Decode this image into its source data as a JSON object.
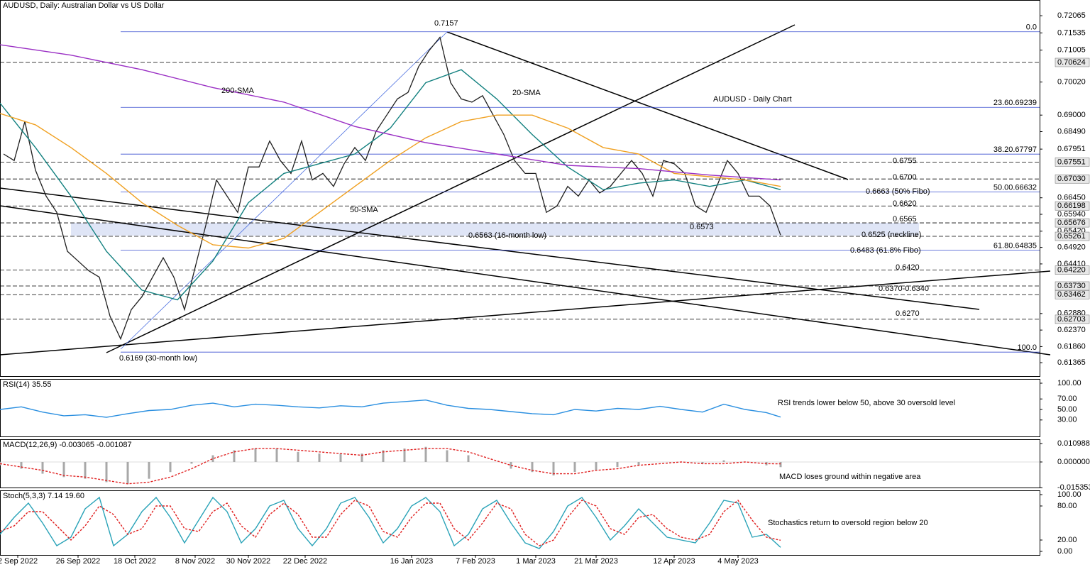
{
  "chart_data": [
    {
      "type": "line",
      "title": "AUDUSD, Daily:  Australian Dollar vs US Dollar",
      "xlim": [
        0,
        293
      ],
      "xticks": [
        {
          "value": 5,
          "label": "2 Sep 2022"
        },
        {
          "value": 22,
          "label": "26 Sep 2022"
        },
        {
          "value": 38,
          "label": "18 Oct 2022"
        },
        {
          "value": 55,
          "label": "8 Nov 2022"
        },
        {
          "value": 70,
          "label": "30 Nov 2022"
        },
        {
          "value": 86,
          "label": "22 Dec 2022"
        },
        {
          "value": 116,
          "label": "16 Jan 2023"
        },
        {
          "value": 134,
          "label": "7 Feb 2023"
        },
        {
          "value": 151,
          "label": "1 Mar 2023"
        },
        {
          "value": 168,
          "label": "21 Mar 2023"
        },
        {
          "value": 190,
          "label": "12 Apr 2023"
        },
        {
          "value": 208,
          "label": "4 May 2023"
        }
      ],
      "ylim": [
        0.6095,
        0.7255
      ],
      "yticks": [
        0.72065,
        0.71535,
        0.71005,
        {
          "value": 0.7002,
          "label": "0.70020"
        },
        {
          "value": 0.69,
          "label": "0.69000"
        },
        {
          "value": 0.6849,
          "label": "0.68490"
        },
        0.67951,
        {
          "value": 0.6645,
          "label": "0.66450"
        },
        {
          "value": 0.6594,
          "label": "0.65940"
        },
        {
          "value": 0.6542,
          "label": "0.65420"
        },
        {
          "value": 0.6492,
          "label": "0.64920"
        },
        {
          "value": 0.6441,
          "label": "0.64410"
        },
        {
          "value": 0.6288,
          "label": "0.62880"
        },
        {
          "value": 0.6237,
          "label": "0.62370"
        },
        {
          "value": 0.6186,
          "label": "0.61860"
        },
        0.61365
      ],
      "levels": [
        0.70624,
        0.67551,
        {
          "value": 0.6703,
          "label": "0.67030"
        },
        0.66198,
        0.65676,
        0.65261,
        {
          "value": 0.6422,
          "label": "0.64220"
        },
        {
          "value": 0.6373,
          "label": "0.63730"
        },
        0.63462,
        0.62703
      ],
      "fib_levels": [
        {
          "value": 0.7157,
          "label": "0.0"
        },
        {
          "value": 0.69239,
          "label": "23.60.69239"
        },
        {
          "value": 0.67797,
          "label": "38.20.67797"
        },
        {
          "value": 0.66632,
          "label": "50.00.66632"
        },
        {
          "value": 0.64835,
          "label": "61.80.64835"
        },
        {
          "value": 0.6169,
          "label": "100.0"
        }
      ],
      "series": [
        {
          "color": "#1f1f1f",
          "style": "line",
          "x": [
            1,
            4,
            7,
            10,
            13,
            16,
            19,
            22,
            25,
            28,
            31,
            34,
            37,
            40,
            43,
            46,
            49,
            52,
            55,
            58,
            61,
            64,
            67,
            70,
            73,
            76,
            79,
            82,
            85,
            88,
            91,
            94,
            97,
            100,
            103,
            106,
            109,
            112,
            115,
            118,
            121,
            124,
            127,
            130,
            133,
            136,
            139,
            142,
            145,
            148,
            151,
            154,
            157,
            160,
            163,
            166,
            169,
            172,
            175,
            178,
            181,
            184,
            187,
            190,
            193,
            196,
            199,
            202,
            205,
            208,
            211,
            214,
            217,
            220
          ],
          "values": [
            0.678,
            0.676,
            0.688,
            0.673,
            0.665,
            0.66,
            0.648,
            0.645,
            0.642,
            0.64,
            0.628,
            0.621,
            0.63,
            0.634,
            0.64,
            0.646,
            0.64,
            0.63,
            0.643,
            0.656,
            0.67,
            0.665,
            0.66,
            0.674,
            0.674,
            0.682,
            0.676,
            0.672,
            0.682,
            0.67,
            0.672,
            0.668,
            0.675,
            0.68,
            0.676,
            0.685,
            0.69,
            0.695,
            0.697,
            0.705,
            0.71,
            0.714,
            0.7,
            0.695,
            0.694,
            0.696,
            0.69,
            0.684,
            0.676,
            0.672,
            0.672,
            0.66,
            0.662,
            0.668,
            0.665,
            0.67,
            0.666,
            0.668,
            0.672,
            0.676,
            0.672,
            0.665,
            0.676,
            0.675,
            0.672,
            0.662,
            0.66,
            0.668,
            0.676,
            0.672,
            0.665,
            0.665,
            0.662,
            0.653
          ]
        },
        {
          "name": "20-SMA",
          "color": "#12807f",
          "style": "line",
          "x": [
            0,
            10,
            20,
            30,
            40,
            50,
            60,
            70,
            80,
            90,
            100,
            110,
            120,
            130,
            140,
            150,
            160,
            170,
            180,
            190,
            200,
            210,
            220
          ],
          "values": [
            0.6937,
            0.68,
            0.665,
            0.648,
            0.636,
            0.633,
            0.645,
            0.663,
            0.672,
            0.675,
            0.678,
            0.686,
            0.7,
            0.704,
            0.695,
            0.684,
            0.674,
            0.667,
            0.669,
            0.67,
            0.668,
            0.67,
            0.667
          ]
        },
        {
          "name": "50-SMA",
          "color": "#f0a020",
          "style": "line",
          "x": [
            0,
            10,
            20,
            30,
            40,
            50,
            60,
            70,
            80,
            90,
            100,
            110,
            120,
            130,
            140,
            150,
            160,
            170,
            180,
            190,
            200,
            210,
            220
          ],
          "values": [
            0.6905,
            0.687,
            0.68,
            0.672,
            0.663,
            0.656,
            0.65,
            0.649,
            0.652,
            0.66,
            0.668,
            0.676,
            0.683,
            0.688,
            0.69,
            0.69,
            0.686,
            0.68,
            0.678,
            0.672,
            0.671,
            0.67,
            0.668
          ]
        },
        {
          "name": "200-SMA",
          "color": "#9a2fc4",
          "style": "line",
          "x": [
            0,
            20,
            40,
            60,
            80,
            100,
            120,
            140,
            160,
            180,
            200,
            220
          ],
          "values": [
            0.7117,
            0.7085,
            0.704,
            0.6985,
            0.694,
            0.6865,
            0.6815,
            0.678,
            0.6745,
            0.6735,
            0.6715,
            0.67
          ]
        }
      ],
      "annotations": [
        {
          "text": "0.7157",
          "color": "#000000"
        },
        {
          "text": "AUDUSD -  Daily Chart",
          "color": "#000000"
        },
        {
          "text": "0.6755",
          "color": "#e02020"
        },
        {
          "text": "0.6700",
          "color": "#e02020"
        },
        {
          "text": "0.6663 (50% Fibo)",
          "color": "#e02020"
        },
        {
          "text": "0.6620",
          "color": "#e02020"
        },
        {
          "text": "0.6565",
          "color": "#e02020"
        },
        {
          "text": "0.6563 (16-month low)",
          "color": "#000000"
        },
        {
          "text": "0.6573",
          "color": "#000000"
        },
        {
          "text": "0.6525 (neckline)",
          "color": "#2e9a2e"
        },
        {
          "text": "0.6483 (61.8% Fibo)",
          "color": "#2e9a2e"
        },
        {
          "text": "0.6420",
          "color": "#2e9a2e"
        },
        {
          "text": "0.6370-0.6340",
          "color": "#2e9a2e"
        },
        {
          "text": "0.6270",
          "color": "#2e9a2e"
        },
        {
          "text": "0.6169 (30-month low)",
          "color": "#000000"
        }
      ]
    },
    {
      "type": "line",
      "title": "RSI(14) 35.55",
      "xlim": [
        0,
        293
      ],
      "ylim": [
        0,
        100
      ],
      "yticks": [
        {
          "value": 100,
          "label": "100.00"
        },
        {
          "value": 70,
          "label": "70.00"
        },
        {
          "value": 50,
          "label": "50.00"
        },
        {
          "value": 30,
          "label": "30.00"
        }
      ],
      "series": [
        {
          "color": "#2a8fe0",
          "style": "line",
          "x": [
            0,
            6,
            12,
            18,
            24,
            30,
            36,
            42,
            48,
            54,
            60,
            66,
            72,
            78,
            84,
            90,
            96,
            102,
            108,
            114,
            120,
            126,
            132,
            138,
            144,
            150,
            156,
            162,
            168,
            174,
            180,
            186,
            192,
            198,
            204,
            210,
            216,
            220
          ],
          "values": [
            50,
            55,
            45,
            38,
            40,
            35,
            42,
            48,
            50,
            58,
            62,
            55,
            60,
            58,
            55,
            53,
            57,
            55,
            62,
            65,
            68,
            58,
            52,
            50,
            46,
            42,
            40,
            50,
            47,
            52,
            50,
            56,
            50,
            45,
            60,
            50,
            44,
            35.55
          ]
        }
      ],
      "annotations": [
        {
          "text": "RSI trends lower below 50, above 30 oversold level",
          "color": "#e02020"
        }
      ]
    },
    {
      "type": "line",
      "title": "MACD(12,26,9) -0.003065 -0.001087",
      "xlim": [
        0,
        293
      ],
      "ylim": [
        -0.01564,
        0.0131
      ],
      "yticks": [
        0.010988,
        {
          "value": 0,
          "label": "0.000000"
        },
        -0.015353
      ],
      "series": [
        {
          "color": "#a8a8a8",
          "style": "bar",
          "x": [
            0,
            6,
            12,
            18,
            24,
            30,
            36,
            42,
            48,
            54,
            60,
            66,
            72,
            78,
            84,
            90,
            96,
            102,
            108,
            114,
            120,
            126,
            132,
            138,
            144,
            150,
            156,
            162,
            168,
            174,
            180,
            186,
            192,
            198,
            204,
            210,
            216,
            220
          ],
          "values": [
            -0.002,
            -0.004,
            -0.007,
            -0.009,
            -0.01,
            -0.012,
            -0.013,
            -0.01,
            -0.006,
            -0.001,
            0.004,
            0.007,
            0.008,
            0.008,
            0.006,
            0.005,
            0.005,
            0.005,
            0.007,
            0.008,
            0.009,
            0.007,
            0.004,
            0,
            -0.004,
            -0.006,
            -0.008,
            -0.006,
            -0.005,
            -0.003,
            -0.002,
            0,
            0,
            -0.001,
            0.001,
            0,
            -0.002,
            -0.003065
          ]
        },
        {
          "color": "#e02020",
          "style": "dotted",
          "x": [
            0,
            6,
            12,
            18,
            24,
            30,
            36,
            42,
            48,
            54,
            60,
            66,
            72,
            78,
            84,
            90,
            96,
            102,
            108,
            114,
            120,
            126,
            132,
            138,
            144,
            150,
            156,
            162,
            168,
            174,
            180,
            186,
            192,
            198,
            204,
            210,
            216,
            220
          ],
          "values": [
            -0.001,
            -0.003,
            -0.005,
            -0.008,
            -0.009,
            -0.011,
            -0.013,
            -0.012,
            -0.009,
            -0.004,
            0.002,
            0.006,
            0.008,
            0.008,
            0.007,
            0.006,
            0.005,
            0.004,
            0.006,
            0.007,
            0.008,
            0.008,
            0.006,
            0.002,
            -0.002,
            -0.005,
            -0.007,
            -0.007,
            -0.005,
            -0.004,
            -0.002,
            -0.001,
            0,
            -0.001,
            -0.001,
            0,
            -0.001,
            -0.001087
          ]
        }
      ],
      "annotations": [
        {
          "text": "MACD loses ground within negative area",
          "color": "#e02020"
        }
      ]
    },
    {
      "type": "line",
      "title": "Stoch(5,3,3) 7.14 19.60",
      "xlim": [
        0,
        293
      ],
      "ylim": [
        0,
        100
      ],
      "yticks": [
        {
          "value": 100,
          "label": "100.00"
        },
        {
          "value": 80,
          "label": "80.00"
        },
        {
          "value": 20,
          "label": "20.00"
        },
        {
          "value": 0,
          "label": "0.00"
        }
      ],
      "series": [
        {
          "color": "#2aa3b8",
          "style": "line",
          "x": [
            0,
            4,
            8,
            12,
            16,
            20,
            24,
            28,
            32,
            36,
            40,
            44,
            48,
            52,
            56,
            60,
            64,
            68,
            72,
            76,
            80,
            84,
            88,
            92,
            96,
            100,
            104,
            108,
            112,
            116,
            120,
            124,
            128,
            132,
            136,
            140,
            144,
            148,
            152,
            156,
            160,
            164,
            168,
            172,
            176,
            180,
            184,
            188,
            192,
            196,
            200,
            204,
            208,
            212,
            216,
            220
          ],
          "values": [
            30,
            60,
            85,
            50,
            10,
            25,
            75,
            95,
            10,
            30,
            70,
            95,
            60,
            15,
            55,
            95,
            70,
            15,
            40,
            80,
            90,
            40,
            10,
            40,
            85,
            95,
            60,
            15,
            40,
            80,
            95,
            70,
            10,
            30,
            75,
            90,
            50,
            15,
            5,
            35,
            80,
            95,
            60,
            20,
            45,
            75,
            50,
            25,
            20,
            15,
            50,
            90,
            85,
            25,
            30,
            7.14
          ]
        },
        {
          "color": "#e02020",
          "style": "dotted",
          "x": [
            0,
            4,
            8,
            12,
            16,
            20,
            24,
            28,
            32,
            36,
            40,
            44,
            48,
            52,
            56,
            60,
            64,
            68,
            72,
            76,
            80,
            84,
            88,
            92,
            96,
            100,
            104,
            108,
            112,
            116,
            120,
            124,
            128,
            132,
            136,
            140,
            144,
            148,
            152,
            156,
            160,
            164,
            168,
            172,
            176,
            180,
            184,
            188,
            192,
            196,
            200,
            204,
            208,
            212,
            216,
            220
          ],
          "values": [
            35,
            45,
            70,
            70,
            45,
            20,
            45,
            80,
            65,
            30,
            40,
            80,
            80,
            40,
            35,
            70,
            85,
            45,
            25,
            65,
            85,
            65,
            25,
            25,
            65,
            90,
            80,
            35,
            25,
            60,
            85,
            85,
            40,
            20,
            50,
            85,
            75,
            30,
            10,
            20,
            60,
            90,
            80,
            40,
            30,
            60,
            65,
            40,
            25,
            20,
            30,
            70,
            90,
            55,
            25,
            19.6
          ]
        }
      ],
      "annotations": [
        {
          "text": "Stochastics return to oversold region below 20",
          "color": "#e02020"
        }
      ]
    }
  ]
}
